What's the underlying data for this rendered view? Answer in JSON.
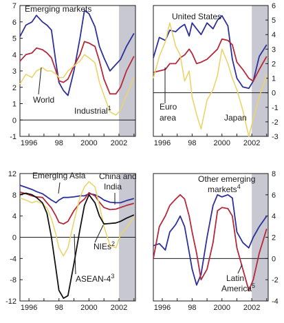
{
  "colors": {
    "blue": "#2c2f9a",
    "red": "#b5273a",
    "yellow": "#ead46a",
    "black": "#111111",
    "shade": "#c8c8d2"
  },
  "chart_data": [
    {
      "type": "line",
      "panel": "top-left",
      "xticks": [
        "1996",
        "98",
        "2000",
        "2002"
      ],
      "yticks": [
        "7",
        "6",
        "5",
        "4",
        "3",
        "2",
        "1",
        "0",
        "-1"
      ],
      "ylim": [
        -1,
        7
      ],
      "xlim": [
        1995.4,
        2003.1
      ],
      "y_axis_side": "left",
      "forecast_shading_from": 2002.0,
      "labels": [
        {
          "text": "Emerging markets",
          "sup": ""
        },
        {
          "text": "World",
          "sup": ""
        },
        {
          "text": "Industrial",
          "sup": "1"
        }
      ],
      "series": [
        {
          "color": "blue",
          "x": [
            1995.4,
            1995.8,
            1996.2,
            1996.5,
            1996.9,
            1997.2,
            1997.5,
            1997.8,
            1998.0,
            1998.3,
            1998.6,
            1999.0,
            1999.4,
            1999.7,
            2000.0,
            2000.4,
            2000.7,
            2001.0,
            2001.4,
            2001.8,
            2002.1,
            2002.5,
            2003.0
          ],
          "y": [
            5.1,
            5.8,
            6.0,
            6.4,
            6.0,
            5.8,
            5.5,
            3.5,
            2.3,
            1.8,
            1.5,
            3.0,
            5.0,
            6.7,
            6.5,
            5.7,
            4.5,
            3.8,
            3.0,
            3.4,
            3.7,
            4.5,
            5.3
          ]
        },
        {
          "color": "red",
          "x": [
            1995.4,
            1995.8,
            1996.2,
            1996.5,
            1996.9,
            1997.2,
            1997.5,
            1997.8,
            1998.0,
            1998.3,
            1998.6,
            1999.0,
            1999.4,
            1999.7,
            2000.0,
            2000.4,
            2000.7,
            2001.0,
            2001.4,
            2001.8,
            2002.1,
            2002.5,
            2003.0
          ],
          "y": [
            3.6,
            4.0,
            4.1,
            4.4,
            4.3,
            4.1,
            3.8,
            3.0,
            2.4,
            2.3,
            2.5,
            3.3,
            4.0,
            4.8,
            4.7,
            4.5,
            3.6,
            2.5,
            1.6,
            1.6,
            2.0,
            3.0,
            3.9
          ]
        },
        {
          "color": "yellow",
          "x": [
            1995.4,
            1995.8,
            1996.2,
            1996.5,
            1996.9,
            1997.2,
            1997.5,
            1997.8,
            1998.0,
            1998.3,
            1998.6,
            1999.0,
            1999.4,
            1999.7,
            2000.0,
            2000.4,
            2000.7,
            2001.0,
            2001.4,
            2001.8,
            2002.1,
            2002.5,
            2003.0
          ],
          "y": [
            2.2,
            2.8,
            2.6,
            3.0,
            3.2,
            3.0,
            3.0,
            2.8,
            2.6,
            2.6,
            3.0,
            3.3,
            3.6,
            4.0,
            3.8,
            3.5,
            2.3,
            1.5,
            0.5,
            0.3,
            0.6,
            1.5,
            2.6
          ]
        }
      ]
    },
    {
      "type": "line",
      "panel": "top-right",
      "xticks": [
        "1996",
        "98",
        "2000",
        "2002"
      ],
      "yticks": [
        "6",
        "5",
        "4",
        "3",
        "2",
        "1",
        "0",
        "-1",
        "-2",
        "-3"
      ],
      "ylim": [
        -3,
        6
      ],
      "xlim": [
        1995.4,
        2003.1
      ],
      "y_axis_side": "right",
      "forecast_shading_from": 2002.0,
      "labels": [
        {
          "text": "United States",
          "sup": ""
        },
        {
          "text": "Euro",
          "sup": ""
        },
        {
          "text": "area",
          "sup": ""
        },
        {
          "text": "Japan",
          "sup": ""
        }
      ],
      "series": [
        {
          "color": "blue",
          "x": [
            1995.4,
            1995.8,
            1996.2,
            1996.5,
            1996.9,
            1997.2,
            1997.5,
            1997.8,
            1998.0,
            1998.3,
            1998.6,
            1999.0,
            1999.4,
            1999.7,
            2000.0,
            2000.4,
            2000.7,
            2001.0,
            2001.4,
            2001.8,
            2002.1,
            2002.5,
            2003.0
          ],
          "y": [
            2.4,
            3.8,
            3.6,
            4.3,
            4.2,
            4.5,
            4.7,
            3.9,
            4.8,
            4.4,
            4.0,
            4.8,
            4.4,
            5.0,
            5.3,
            4.6,
            2.3,
            1.0,
            0.4,
            0.3,
            0.8,
            2.5,
            3.3
          ]
        },
        {
          "color": "red",
          "x": [
            1995.4,
            1995.8,
            1996.2,
            1996.5,
            1996.9,
            1997.2,
            1997.5,
            1997.8,
            1998.0,
            1998.3,
            1998.6,
            1999.0,
            1999.4,
            1999.7,
            2000.0,
            2000.4,
            2000.7,
            2001.0,
            2001.4,
            2001.8,
            2002.1,
            2002.5,
            2003.0
          ],
          "y": [
            1.4,
            1.5,
            1.6,
            2.0,
            2.0,
            2.4,
            2.6,
            3.0,
            2.7,
            2.0,
            2.1,
            2.3,
            2.7,
            3.0,
            3.7,
            3.6,
            3.3,
            2.1,
            1.6,
            1.0,
            0.8,
            1.6,
            2.5
          ]
        },
        {
          "color": "yellow",
          "x": [
            1995.4,
            1995.8,
            1996.2,
            1996.5,
            1996.9,
            1997.2,
            1997.5,
            1997.8,
            1998.0,
            1998.3,
            1998.6,
            1999.0,
            1999.4,
            1999.7,
            2000.0,
            2000.4,
            2000.7,
            2001.0,
            2001.4,
            2001.8,
            2002.1,
            2002.5,
            2003.0
          ],
          "y": [
            1.0,
            2.5,
            3.5,
            4.8,
            3.2,
            2.6,
            0.8,
            1.5,
            -0.3,
            -1.5,
            -2.5,
            -0.5,
            0.2,
            1.2,
            3.0,
            2.0,
            1.0,
            0.2,
            -1.2,
            -3.0,
            -1.8,
            -0.3,
            1.2
          ]
        }
      ]
    },
    {
      "type": "line",
      "panel": "bottom-left",
      "xticks": [
        "1996",
        "98",
        "2000",
        "2002"
      ],
      "yticks": [
        "12",
        "8",
        "4",
        "0",
        "-4",
        "-8",
        "-12"
      ],
      "ylim": [
        -12,
        12
      ],
      "xlim": [
        1995.4,
        2003.1
      ],
      "y_axis_side": "left",
      "forecast_shading_from": 2002.0,
      "labels": [
        {
          "text": "Emerging Asia",
          "sup": ""
        },
        {
          "text": "China and",
          "sup": ""
        },
        {
          "text": "India",
          "sup": ""
        },
        {
          "text": "NIEs",
          "sup": "2"
        },
        {
          "text": "ASEAN-4",
          "sup": "3"
        }
      ],
      "series": [
        {
          "color": "blue",
          "x": [
            1995.4,
            1995.8,
            1996.2,
            1996.5,
            1996.9,
            1997.2,
            1997.5,
            1997.8,
            1998.0,
            1998.3,
            1998.6,
            1999.0,
            1999.4,
            1999.7,
            2000.0,
            2000.4,
            2000.7,
            2001.0,
            2001.4,
            2001.8,
            2002.1,
            2002.5,
            2003.0
          ],
          "y": [
            9.8,
            9.4,
            9.0,
            8.6,
            8.2,
            7.6,
            7.0,
            6.5,
            7.0,
            7.5,
            7.5,
            7.6,
            7.8,
            7.8,
            8.2,
            8.0,
            7.6,
            7.0,
            6.6,
            6.5,
            6.5,
            6.9,
            7.3
          ]
        },
        {
          "color": "red",
          "x": [
            1995.4,
            1995.8,
            1996.2,
            1996.5,
            1996.9,
            1997.2,
            1997.5,
            1997.8,
            1998.0,
            1998.3,
            1998.6,
            1999.0,
            1999.4,
            1999.7,
            2000.0,
            2000.4,
            2000.7,
            2001.0,
            2001.4,
            2001.8,
            2002.1,
            2002.5,
            2003.0
          ],
          "y": [
            8.5,
            8.2,
            7.8,
            7.6,
            7.5,
            6.5,
            5.5,
            4.0,
            2.8,
            2.5,
            3.0,
            5.0,
            6.5,
            7.2,
            8.4,
            7.8,
            6.6,
            5.6,
            5.2,
            5.3,
            5.6,
            6.0,
            6.4
          ]
        },
        {
          "color": "yellow",
          "x": [
            1995.4,
            1995.8,
            1996.2,
            1996.5,
            1996.9,
            1997.2,
            1997.5,
            1997.8,
            1998.0,
            1998.3,
            1998.6,
            1999.0,
            1999.4,
            1999.7,
            2000.0,
            2000.4,
            2000.7,
            2001.0,
            2001.4,
            2001.8,
            2002.1,
            2002.5,
            2003.0
          ],
          "y": [
            7.4,
            7.0,
            6.5,
            6.8,
            6.3,
            5.5,
            3.5,
            0.5,
            -2.0,
            -3.5,
            -2.0,
            3.0,
            7.5,
            9.5,
            10.5,
            9.5,
            6.0,
            2.0,
            -1.5,
            -2.0,
            0.5,
            1.8,
            3.8
          ]
        },
        {
          "color": "black",
          "x": [
            1995.4,
            1995.8,
            1996.2,
            1996.5,
            1996.9,
            1997.2,
            1997.5,
            1997.8,
            1998.0,
            1998.3,
            1998.6,
            1999.0,
            1999.4,
            1999.7,
            2000.0,
            2000.4,
            2000.7,
            2001.0,
            2001.4,
            2001.8,
            2002.1,
            2002.5,
            2003.0
          ],
          "y": [
            8.0,
            8.3,
            8.0,
            7.5,
            6.5,
            4.5,
            0.0,
            -6.0,
            -10.0,
            -11.5,
            -11.0,
            -5.0,
            1.5,
            6.0,
            8.0,
            6.5,
            4.0,
            2.5,
            2.6,
            2.7,
            3.0,
            3.6,
            4.2
          ]
        }
      ]
    },
    {
      "type": "line",
      "panel": "bottom-right",
      "xticks": [
        "1996",
        "98",
        "2000",
        "2002"
      ],
      "yticks": [
        "8",
        "6",
        "4",
        "2",
        "0",
        "-2",
        "-4"
      ],
      "ylim": [
        -4,
        8
      ],
      "xlim": [
        1995.4,
        2003.1
      ],
      "y_axis_side": "right",
      "forecast_shading_from": 2002.0,
      "labels": [
        {
          "text": "Other emerging",
          "sup": ""
        },
        {
          "text": "markets",
          "sup": "4"
        },
        {
          "text": "Latin",
          "sup": ""
        },
        {
          "text": "America",
          "sup": "5"
        }
      ],
      "series": [
        {
          "color": "blue",
          "x": [
            1995.4,
            1995.8,
            1996.2,
            1996.5,
            1996.9,
            1997.2,
            1997.5,
            1997.8,
            1998.0,
            1998.3,
            1998.6,
            1999.0,
            1999.4,
            1999.7,
            2000.0,
            2000.4,
            2000.7,
            2001.0,
            2001.4,
            2001.8,
            2002.1,
            2002.5,
            2003.0
          ],
          "y": [
            1.2,
            1.4,
            0.8,
            2.5,
            3.2,
            4.0,
            3.0,
            0.6,
            -1.0,
            -2.5,
            -1.5,
            2.0,
            5.0,
            6.0,
            5.8,
            6.0,
            5.7,
            2.5,
            1.5,
            1.0,
            2.0,
            3.0,
            4.0
          ]
        },
        {
          "color": "red",
          "x": [
            1995.4,
            1995.8,
            1996.2,
            1996.5,
            1996.9,
            1997.2,
            1997.5,
            1997.8,
            1998.0,
            1998.3,
            1998.6,
            1999.0,
            1999.4,
            1999.7,
            2000.0,
            2000.4,
            2000.7,
            2001.0,
            2001.4,
            2001.8,
            2002.1,
            2002.5,
            2003.0
          ],
          "y": [
            0.0,
            3.0,
            4.0,
            5.0,
            5.6,
            6.0,
            5.6,
            4.0,
            2.5,
            0.5,
            -2.0,
            -1.0,
            1.5,
            4.5,
            4.8,
            4.7,
            4.0,
            1.0,
            -1.0,
            -3.0,
            -2.0,
            0.5,
            2.8
          ]
        }
      ]
    }
  ]
}
